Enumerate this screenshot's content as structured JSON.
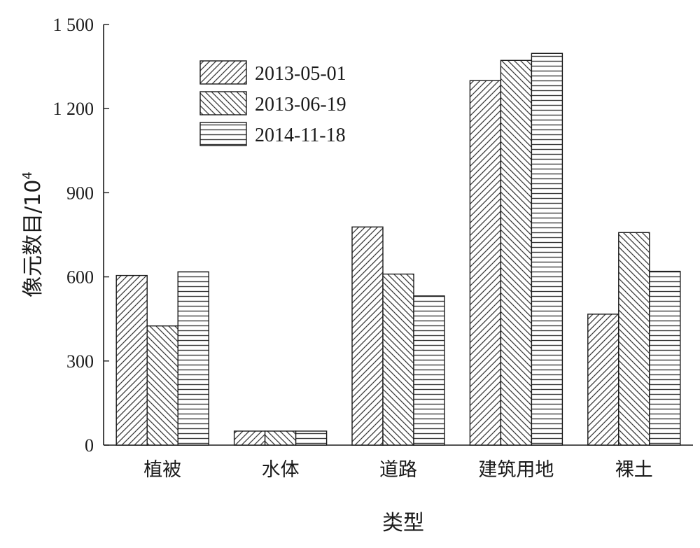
{
  "chart_data": {
    "type": "bar",
    "title": "",
    "xlabel": "类型",
    "ylabel_main": "像元数目/10",
    "ylabel_sup": "4",
    "categories": [
      "植被",
      "水体",
      "道路",
      "建筑用地",
      "裸土"
    ],
    "series": [
      {
        "name": "2013-05-01",
        "values": [
          605,
          50,
          778,
          1300,
          467
        ],
        "pattern": "diag-down-left"
      },
      {
        "name": "2013-06-19",
        "values": [
          425,
          50,
          610,
          1372,
          758
        ],
        "pattern": "diag-down-right"
      },
      {
        "name": "2014-11-18",
        "values": [
          618,
          50,
          532,
          1397,
          620
        ],
        "pattern": "horizontal"
      }
    ],
    "ylim": [
      0,
      1500
    ],
    "yticks": [
      0,
      300,
      600,
      900,
      1200,
      1500
    ],
    "ytick_labels": [
      "0",
      "300",
      "600",
      "900",
      "1 200",
      "1 500"
    ],
    "grid": false,
    "legend_position": "top-left"
  }
}
